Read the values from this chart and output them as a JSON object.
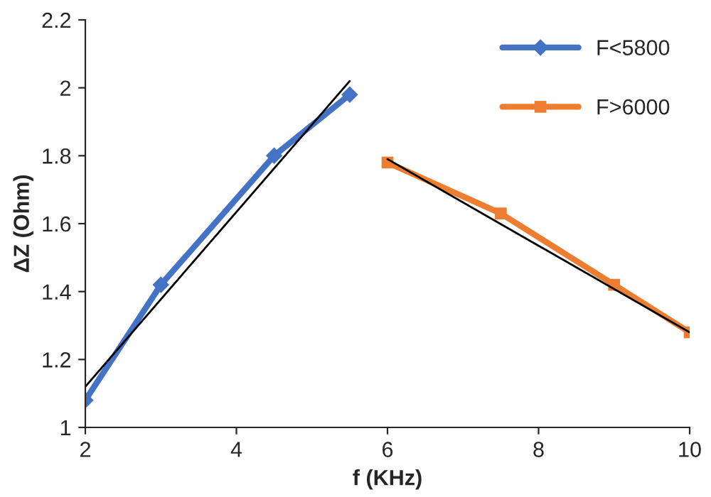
{
  "chart_data": {
    "type": "line",
    "xlabel": "f (KHz)",
    "ylabel": "ΔZ (Ohm)",
    "series": [
      {
        "name": "F<5800",
        "color": "#4472c4",
        "x": [
          2,
          3,
          4.5,
          5.5
        ],
        "values": [
          1.08,
          1.42,
          1.8,
          1.98
        ],
        "marker": "diamond"
      },
      {
        "name": "F>6000",
        "color": "#ed7d31",
        "x": [
          6,
          7.5,
          9,
          10
        ],
        "values": [
          1.78,
          1.63,
          1.42,
          1.28
        ],
        "marker": "square"
      },
      {
        "color": "#000000",
        "x": [
          2,
          5.5
        ],
        "values": [
          1.12,
          2.02
        ],
        "marker": "none"
      },
      {
        "color": "#000000",
        "x": [
          6,
          10
        ],
        "values": [
          1.79,
          1.28
        ],
        "marker": "none"
      }
    ],
    "xlim": [
      2,
      10
    ],
    "xticks": [
      2,
      4,
      6,
      8,
      10
    ],
    "ylim": [
      1,
      2.2
    ],
    "yticks": [
      1,
      1.2,
      1.4,
      1.6,
      1.8,
      2,
      2.2
    ],
    "grid": false,
    "legend": "top right"
  }
}
